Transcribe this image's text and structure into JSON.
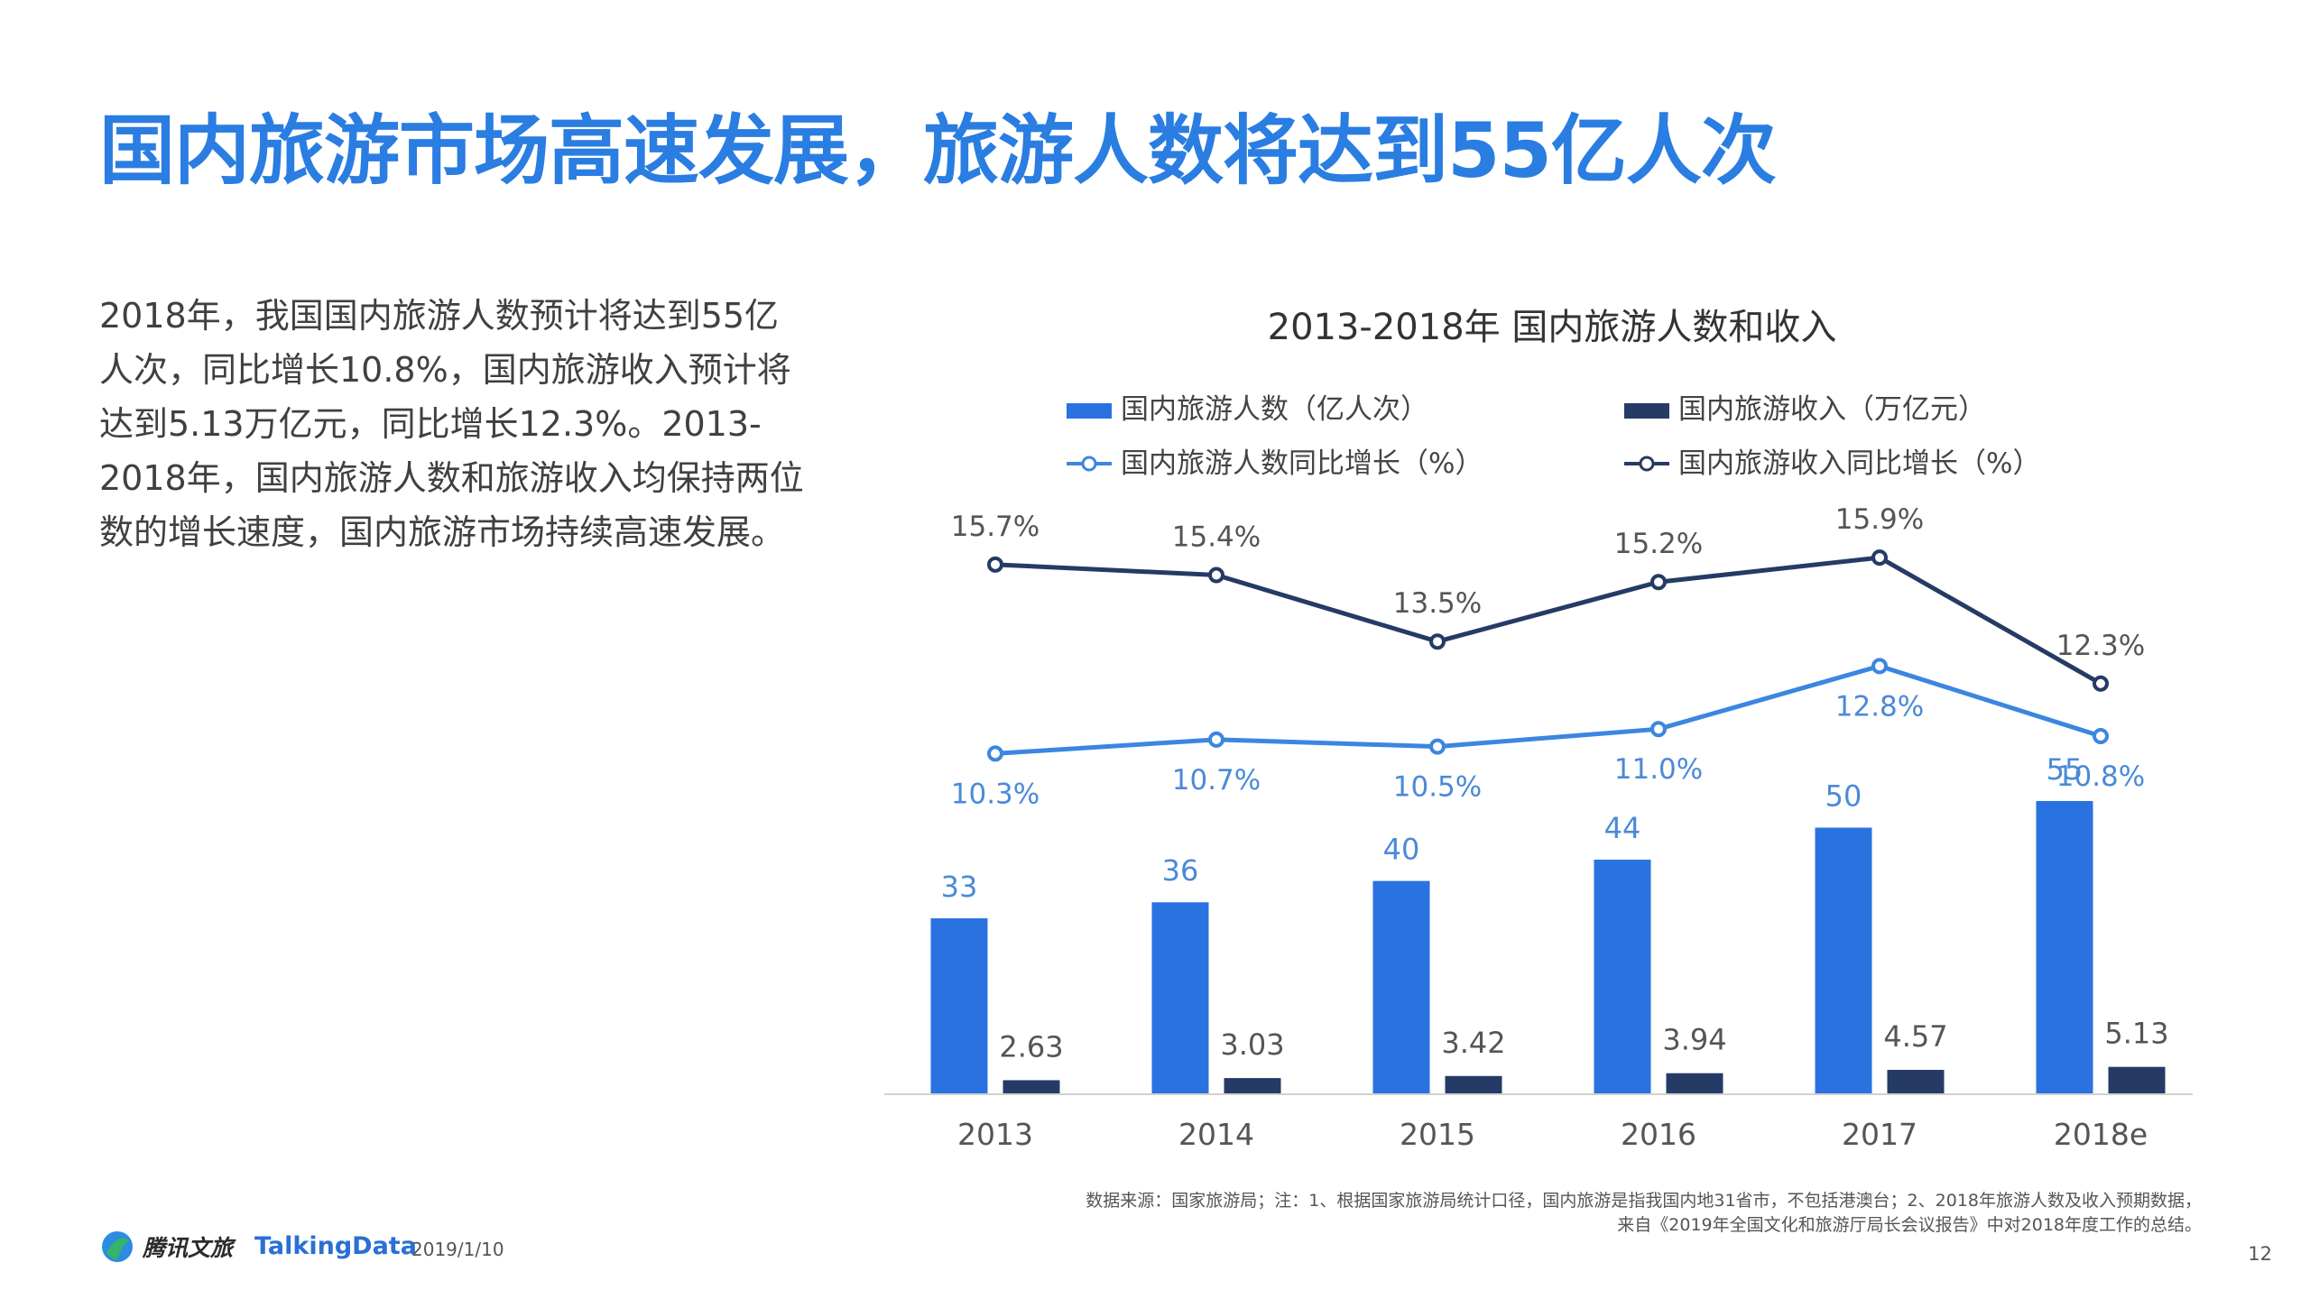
{
  "header": {
    "title": "国内旅游市场高速发展，旅游人数将达到55亿人次"
  },
  "body": {
    "paragraph": "2018年，我国国内旅游人数预计将达到55亿人次，同比增长10.8%，国内旅游收入预计将达到5.13万亿元，同比增长12.3%。2013-2018年，国内旅游人数和旅游收入均保持两位数的增长速度，国内旅游市场持续高速发展。"
  },
  "colors": {
    "title": "#2a7de1",
    "bar_people": "#2a72e0",
    "bar_income": "#253b66",
    "line_people": "#3c86e0",
    "line_income": "#253b66"
  },
  "chart_data": {
    "type": "bar",
    "title": "2013-2018年 国内旅游人数和收入",
    "categories": [
      "2013",
      "2014",
      "2015",
      "2016",
      "2017",
      "2018e"
    ],
    "series": [
      {
        "name": "国内旅游人数（亿人次）",
        "kind": "bar",
        "values": [
          33,
          36,
          40,
          44,
          50,
          55
        ],
        "labels": [
          "33",
          "36",
          "40",
          "44",
          "50",
          "55"
        ]
      },
      {
        "name": "国内旅游收入（万亿元）",
        "kind": "bar",
        "values": [
          2.63,
          3.03,
          3.42,
          3.94,
          4.57,
          5.13
        ],
        "labels": [
          "2.63",
          "3.03",
          "3.42",
          "3.94",
          "4.57",
          "5.13"
        ]
      },
      {
        "name": "国内旅游人数同比增长（%）",
        "kind": "line",
        "values": [
          10.3,
          10.7,
          10.5,
          11.0,
          12.8,
          10.8
        ],
        "labels": [
          "10.3%",
          "10.7%",
          "10.5%",
          "11.0%",
          "12.8%",
          "10.8%"
        ]
      },
      {
        "name": "国内旅游收入同比增长（%）",
        "kind": "line",
        "values": [
          15.7,
          15.4,
          13.5,
          15.2,
          15.9,
          12.3
        ],
        "labels": [
          "15.7%",
          "15.4%",
          "13.5%",
          "15.2%",
          "15.9%",
          "12.3%"
        ]
      }
    ],
    "legend_position": "top",
    "grid": false
  },
  "footer": {
    "source_line1": "数据来源：国家旅游局；注：1、根据国家旅游局统计口径，国内旅游是指我国内地31省市，不包括港澳台；2、2018年旅游人数及收入预期数据，",
    "source_line2": "来自《2019年全国文化和旅游厅局长会议报告》中对2018年度工作的总结。",
    "logo_tencent": "腾讯文旅",
    "logo_talkingdata": "TalkingData",
    "date": "2019/1/10",
    "page": "12"
  }
}
